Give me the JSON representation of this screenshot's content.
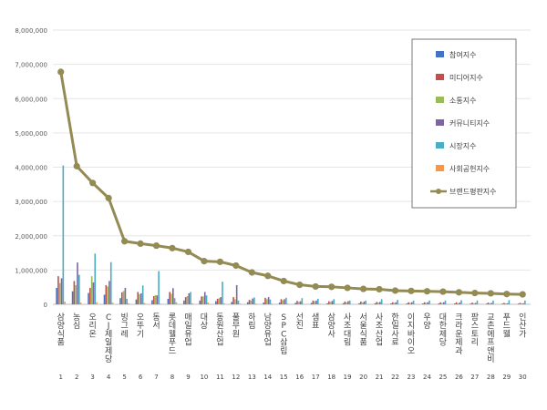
{
  "chart_data": {
    "type": "bar",
    "categories": [
      "삼양식품",
      "농심",
      "오리온",
      "CJ제일제당",
      "빙그레",
      "오뚜기",
      "동서",
      "롯데웰푸드",
      "매일유업",
      "대상",
      "동원산업",
      "풀무원",
      "하림",
      "남양유업",
      "SPC삼립",
      "선진",
      "샘표",
      "삼양사",
      "사조대림",
      "서울식품",
      "사조산업",
      "한일사료",
      "이지바이오",
      "우양",
      "대한제당",
      "크라운제과",
      "팜스토리",
      "교촌에프앤비",
      "푸드웰",
      "인산가"
    ],
    "category_numbers": [
      "1",
      "2",
      "3",
      "4",
      "5",
      "6",
      "7",
      "8",
      "9",
      "10",
      "11",
      "12",
      "13",
      "14",
      "15",
      "16",
      "17",
      "18",
      "19",
      "20",
      "21",
      "22",
      "23",
      "24",
      "25",
      "26",
      "27",
      "28",
      "29",
      "30"
    ],
    "ylim": [
      0,
      8000000
    ],
    "yticks": [
      0,
      1000000,
      2000000,
      3000000,
      4000000,
      5000000,
      6000000,
      7000000,
      8000000
    ],
    "ytick_labels": [
      "0",
      "1,000,000",
      "2,000,000",
      "3,000,000",
      "4,000,000",
      "5,000,000",
      "6,000,000",
      "7,000,000",
      "8,000,000"
    ],
    "legend_position": "top-right",
    "grid": "horizontal",
    "series": [
      {
        "name": "참여지수",
        "type": "bar",
        "color": "#4472C4",
        "values": [
          480000,
          380000,
          330000,
          280000,
          180000,
          140000,
          120000,
          160000,
          110000,
          110000,
          90000,
          70000,
          60000,
          50000,
          50000,
          40000,
          40000,
          30000,
          30000,
          30000,
          30000,
          25000,
          25000,
          25000,
          25000,
          25000,
          20000,
          20000,
          20000,
          20000
        ]
      },
      {
        "name": "미디어지수",
        "type": "bar",
        "color": "#C0504D",
        "values": [
          820000,
          680000,
          480000,
          560000,
          350000,
          360000,
          240000,
          360000,
          210000,
          230000,
          160000,
          210000,
          130000,
          190000,
          150000,
          100000,
          110000,
          90000,
          80000,
          80000,
          70000,
          60000,
          60000,
          60000,
          60000,
          60000,
          50000,
          50000,
          40000,
          40000
        ]
      },
      {
        "name": "소통지수",
        "type": "bar",
        "color": "#9BBB59",
        "values": [
          620000,
          560000,
          820000,
          520000,
          390000,
          300000,
          270000,
          310000,
          240000,
          230000,
          180000,
          150000,
          110000,
          150000,
          120000,
          70000,
          90000,
          70000,
          60000,
          50000,
          50000,
          40000,
          40000,
          40000,
          40000,
          30000,
          30000,
          30000,
          30000,
          30000
        ]
      },
      {
        "name": "커뮤니티지수",
        "type": "bar",
        "color": "#8064A2",
        "values": [
          760000,
          1220000,
          640000,
          680000,
          480000,
          320000,
          260000,
          470000,
          320000,
          360000,
          210000,
          560000,
          170000,
          210000,
          150000,
          90000,
          110000,
          100000,
          90000,
          80000,
          70000,
          60000,
          60000,
          60000,
          60000,
          50000,
          40000,
          40000,
          30000,
          30000
        ]
      },
      {
        "name": "시장지수",
        "type": "bar",
        "color": "#4BACC6",
        "values": [
          4050000,
          860000,
          1480000,
          1230000,
          160000,
          550000,
          970000,
          180000,
          360000,
          260000,
          660000,
          110000,
          200000,
          140000,
          190000,
          180000,
          160000,
          150000,
          110000,
          110000,
          150000,
          130000,
          110000,
          110000,
          110000,
          120000,
          110000,
          110000,
          120000,
          110000
        ]
      },
      {
        "name": "사회공헌지수",
        "type": "bar",
        "color": "#F79646",
        "values": [
          80000,
          50000,
          60000,
          50000,
          30000,
          40000,
          20000,
          60000,
          30000,
          50000,
          30000,
          20000,
          20000,
          20000,
          20000,
          10000,
          20000,
          10000,
          10000,
          10000,
          10000,
          10000,
          10000,
          10000,
          10000,
          10000,
          10000,
          10000,
          10000,
          10000
        ]
      },
      {
        "name": "브랜드평판지수",
        "type": "line",
        "color": "#948A54",
        "values": [
          6780000,
          4030000,
          3540000,
          3100000,
          1840000,
          1770000,
          1710000,
          1640000,
          1530000,
          1260000,
          1240000,
          1130000,
          930000,
          830000,
          680000,
          570000,
          520000,
          510000,
          480000,
          450000,
          440000,
          400000,
          390000,
          380000,
          370000,
          350000,
          330000,
          320000,
          300000,
          290000
        ]
      }
    ]
  }
}
